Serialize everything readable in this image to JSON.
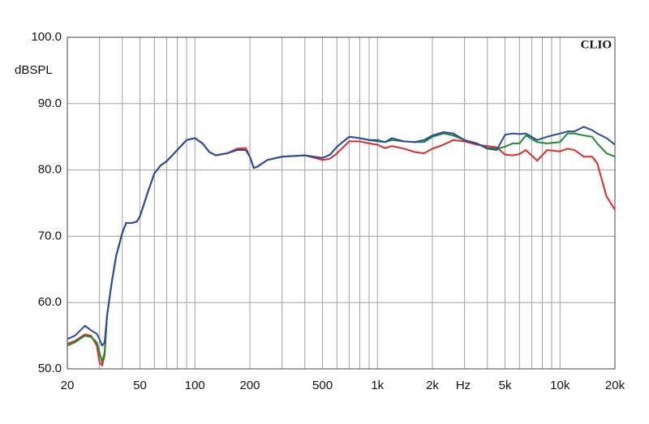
{
  "chart_data": {
    "type": "line",
    "y_label": "dBSPL",
    "x_label": "Hz",
    "watermark": "CLIO",
    "xscale": "log",
    "grid": true,
    "xlim": [
      20,
      20000
    ],
    "ylim": [
      50,
      100
    ],
    "xticks": [
      20,
      {
        "value": 30,
        "label": null
      },
      {
        "value": 40,
        "label": null
      },
      50,
      {
        "value": 60,
        "label": null
      },
      {
        "value": 70,
        "label": null
      },
      {
        "value": 80,
        "label": null
      },
      {
        "value": 90,
        "label": null
      },
      100,
      200,
      {
        "value": 300,
        "label": null
      },
      {
        "value": 400,
        "label": null
      },
      500,
      {
        "value": 600,
        "label": null
      },
      {
        "value": 700,
        "label": null
      },
      {
        "value": 800,
        "label": null
      },
      {
        "value": 900,
        "label": null
      },
      {
        "value": 1000,
        "label": "1k"
      },
      {
        "value": 2000,
        "label": "2k"
      },
      {
        "value": 3000,
        "label": null
      },
      {
        "value": 4000,
        "label": null
      },
      {
        "value": 5000,
        "label": "5k"
      },
      {
        "value": 6000,
        "label": null
      },
      {
        "value": 7000,
        "label": null
      },
      {
        "value": 8000,
        "label": null
      },
      {
        "value": 9000,
        "label": null
      },
      {
        "value": 10000,
        "label": "10k"
      },
      {
        "value": 20000,
        "label": "20k"
      }
    ],
    "yticks": [
      {
        "value": 50,
        "label": "50.0"
      },
      {
        "value": 60,
        "label": "60.0"
      },
      {
        "value": 70,
        "label": "70.0"
      },
      {
        "value": 80,
        "label": "80.0"
      },
      {
        "value": 90,
        "label": "90.0"
      },
      {
        "value": 100,
        "label": "100.0"
      }
    ],
    "x": [
      20,
      22,
      25,
      27,
      29,
      30,
      31,
      32,
      33,
      35,
      37,
      40,
      42,
      45,
      48,
      50,
      55,
      60,
      65,
      70,
      80,
      90,
      100,
      110,
      120,
      130,
      150,
      170,
      190,
      200,
      210,
      220,
      250,
      300,
      400,
      500,
      550,
      600,
      700,
      800,
      900,
      1000,
      1100,
      1200,
      1400,
      1600,
      1800,
      2000,
      2300,
      2600,
      3000,
      3500,
      4000,
      4500,
      5000,
      5500,
      6000,
      6500,
      7500,
      8500,
      10000,
      11000,
      12000,
      13500,
      15000,
      16000,
      18000,
      20000
    ],
    "series": [
      {
        "color": "#e02a2a",
        "values": [
          53.8,
          54.2,
          55.2,
          55,
          53.5,
          51,
          50.5,
          52,
          58,
          63,
          67,
          70.5,
          72,
          72,
          72.2,
          73,
          76.5,
          79.5,
          80.7,
          81.3,
          83,
          84.5,
          84.8,
          84,
          82.7,
          82.2,
          82.5,
          83.2,
          83.3,
          82,
          80.3,
          80.5,
          81.5,
          82,
          82.2,
          81.5,
          81.7,
          82.5,
          84.3,
          84.3,
          84,
          83.8,
          83.3,
          83.6,
          83.2,
          82.7,
          82.5,
          83.2,
          83.8,
          84.5,
          84.3,
          83.8,
          83.6,
          83.4,
          82.3,
          82.2,
          82.4,
          83,
          81.4,
          83,
          82.8,
          83.2,
          83,
          82,
          82,
          81,
          76,
          74
        ]
      },
      {
        "color": "#1f8a2e",
        "values": [
          53.5,
          54,
          55,
          54.8,
          54,
          52.5,
          51,
          52.5,
          58,
          63,
          67,
          70.5,
          72,
          72,
          72.2,
          73,
          76.5,
          79.5,
          80.7,
          81.3,
          83,
          84.5,
          84.8,
          84,
          82.7,
          82.2,
          82.5,
          83,
          83,
          82,
          80.3,
          80.5,
          81.5,
          82,
          82.2,
          81.8,
          82.3,
          83.5,
          85,
          84.8,
          84.5,
          84.3,
          84.2,
          84.5,
          84.3,
          84.2,
          84.2,
          85,
          85.5,
          85.2,
          84.5,
          84,
          83.3,
          83.2,
          83.5,
          84,
          84,
          85.2,
          84.2,
          84,
          84.2,
          85.5,
          85.5,
          85.2,
          85,
          84,
          82.5,
          82
        ]
      },
      {
        "color": "#2a4aa5",
        "values": [
          54.5,
          55,
          56.5,
          55.8,
          55.3,
          54.5,
          53.5,
          54,
          58,
          63,
          67,
          70.5,
          72,
          72,
          72.2,
          73,
          76.5,
          79.5,
          80.7,
          81.3,
          83,
          84.5,
          84.8,
          84,
          82.7,
          82.2,
          82.5,
          83,
          83,
          82,
          80.3,
          80.5,
          81.5,
          82,
          82.2,
          81.8,
          82.3,
          83.5,
          85,
          84.8,
          84.5,
          84.5,
          84.2,
          84.8,
          84.3,
          84.2,
          84.5,
          85.2,
          85.7,
          85.5,
          84.5,
          84,
          83.2,
          83,
          85.3,
          85.5,
          85.4,
          85.5,
          84.5,
          85,
          85.5,
          85.8,
          85.8,
          86.5,
          86,
          85.5,
          84.8,
          83.8
        ]
      }
    ]
  }
}
